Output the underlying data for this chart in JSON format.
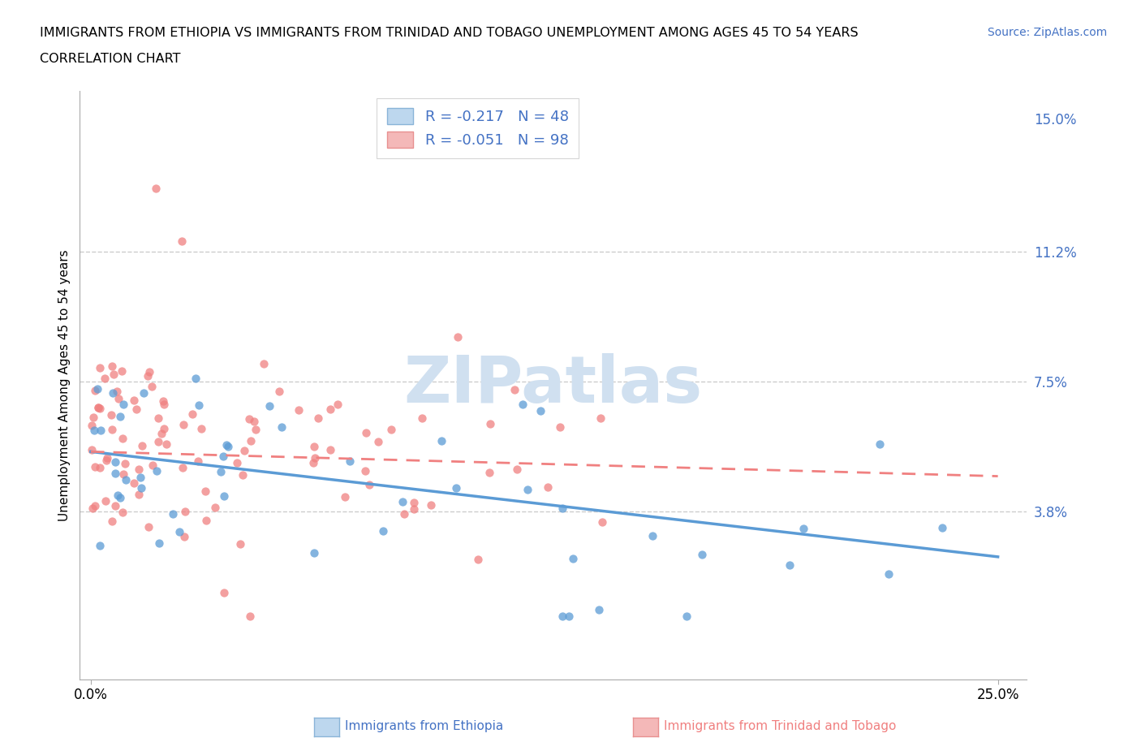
{
  "title_line1": "IMMIGRANTS FROM ETHIOPIA VS IMMIGRANTS FROM TRINIDAD AND TOBAGO UNEMPLOYMENT AMONG AGES 45 TO 54 YEARS",
  "title_line2": "CORRELATION CHART",
  "source_text": "Source: ZipAtlas.com",
  "ylabel": "Unemployment Among Ages 45 to 54 years",
  "xlim": [
    -0.003,
    0.258
  ],
  "ylim": [
    -0.01,
    0.158
  ],
  "xtick_positions": [
    0.0,
    0.25
  ],
  "xtick_labels": [
    "0.0%",
    "25.0%"
  ],
  "ytick_labels_right": [
    "15.0%",
    "11.2%",
    "7.5%",
    "3.8%"
  ],
  "ytick_values_right": [
    0.15,
    0.112,
    0.075,
    0.038
  ],
  "gridline_y": [
    0.112,
    0.075,
    0.038
  ],
  "ethiopia_color": "#5b9bd5",
  "ethiopia_fill": "#bdd7ee",
  "tobago_color": "#f08080",
  "tobago_fill": "#f4b8b8",
  "watermark_text": "ZIPatlas",
  "watermark_color": "#d0e0f0",
  "legend_label_eth": "R = -0.217   N = 48",
  "legend_label_tob": "R = -0.051   N = 98",
  "bottom_label_eth": "Immigrants from Ethiopia",
  "bottom_label_tob": "Immigrants from Trinidad and Tobago",
  "eth_trendline_x": [
    0.0,
    0.25
  ],
  "eth_trendline_y": [
    0.055,
    0.025
  ],
  "tob_trendline_x": [
    0.0,
    0.25
  ],
  "tob_trendline_y": [
    0.055,
    0.048
  ]
}
